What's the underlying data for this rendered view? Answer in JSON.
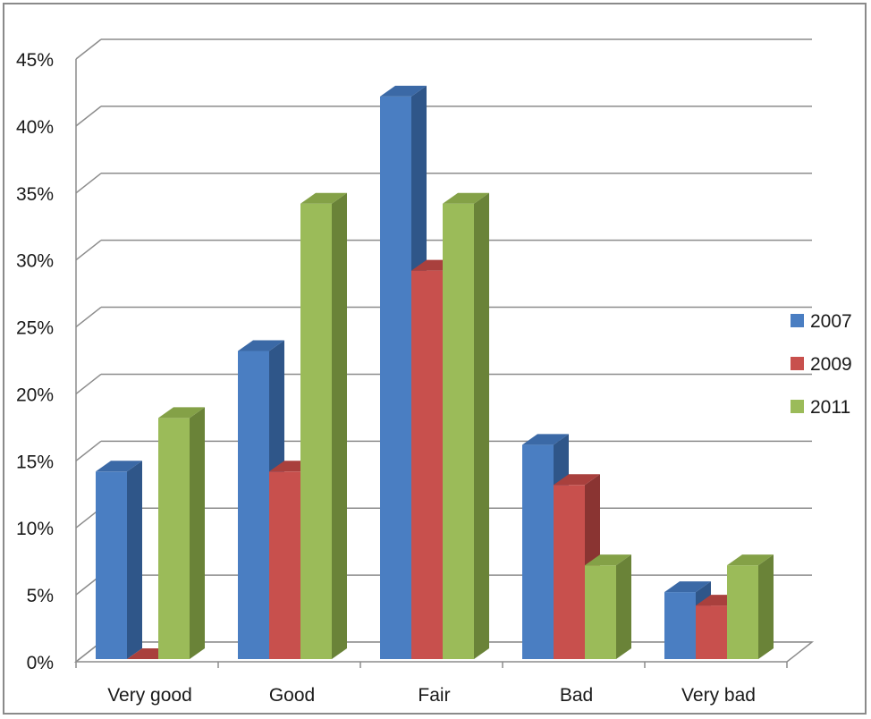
{
  "chart_data": {
    "type": "bar",
    "title": "",
    "xlabel": "",
    "ylabel": "",
    "categories": [
      "Very good",
      "Good",
      "Fair",
      "Bad",
      "Very bad"
    ],
    "series": [
      {
        "name": "2007",
        "values": [
          14,
          23,
          42,
          16,
          5
        ]
      },
      {
        "name": "2009",
        "values": [
          0,
          14,
          29,
          13,
          4
        ]
      },
      {
        "name": "2011",
        "values": [
          18,
          34,
          34,
          7,
          7
        ]
      }
    ],
    "ylim": [
      0,
      45
    ],
    "y_ticks": [
      "0%",
      "5%",
      "10%",
      "15%",
      "20%",
      "25%",
      "30%",
      "35%",
      "40%",
      "45%"
    ],
    "grid": true,
    "legend": "right",
    "style": "3d-clustered-column",
    "colors": {
      "2007": {
        "front": "#4a7ec2",
        "top": "#3b69a6",
        "side": "#2f5689"
      },
      "2009": {
        "front": "#c8504d",
        "top": "#a9403d",
        "side": "#8a3432"
      },
      "2011": {
        "front": "#9bbb59",
        "top": "#84a147",
        "side": "#6a8338"
      }
    }
  }
}
